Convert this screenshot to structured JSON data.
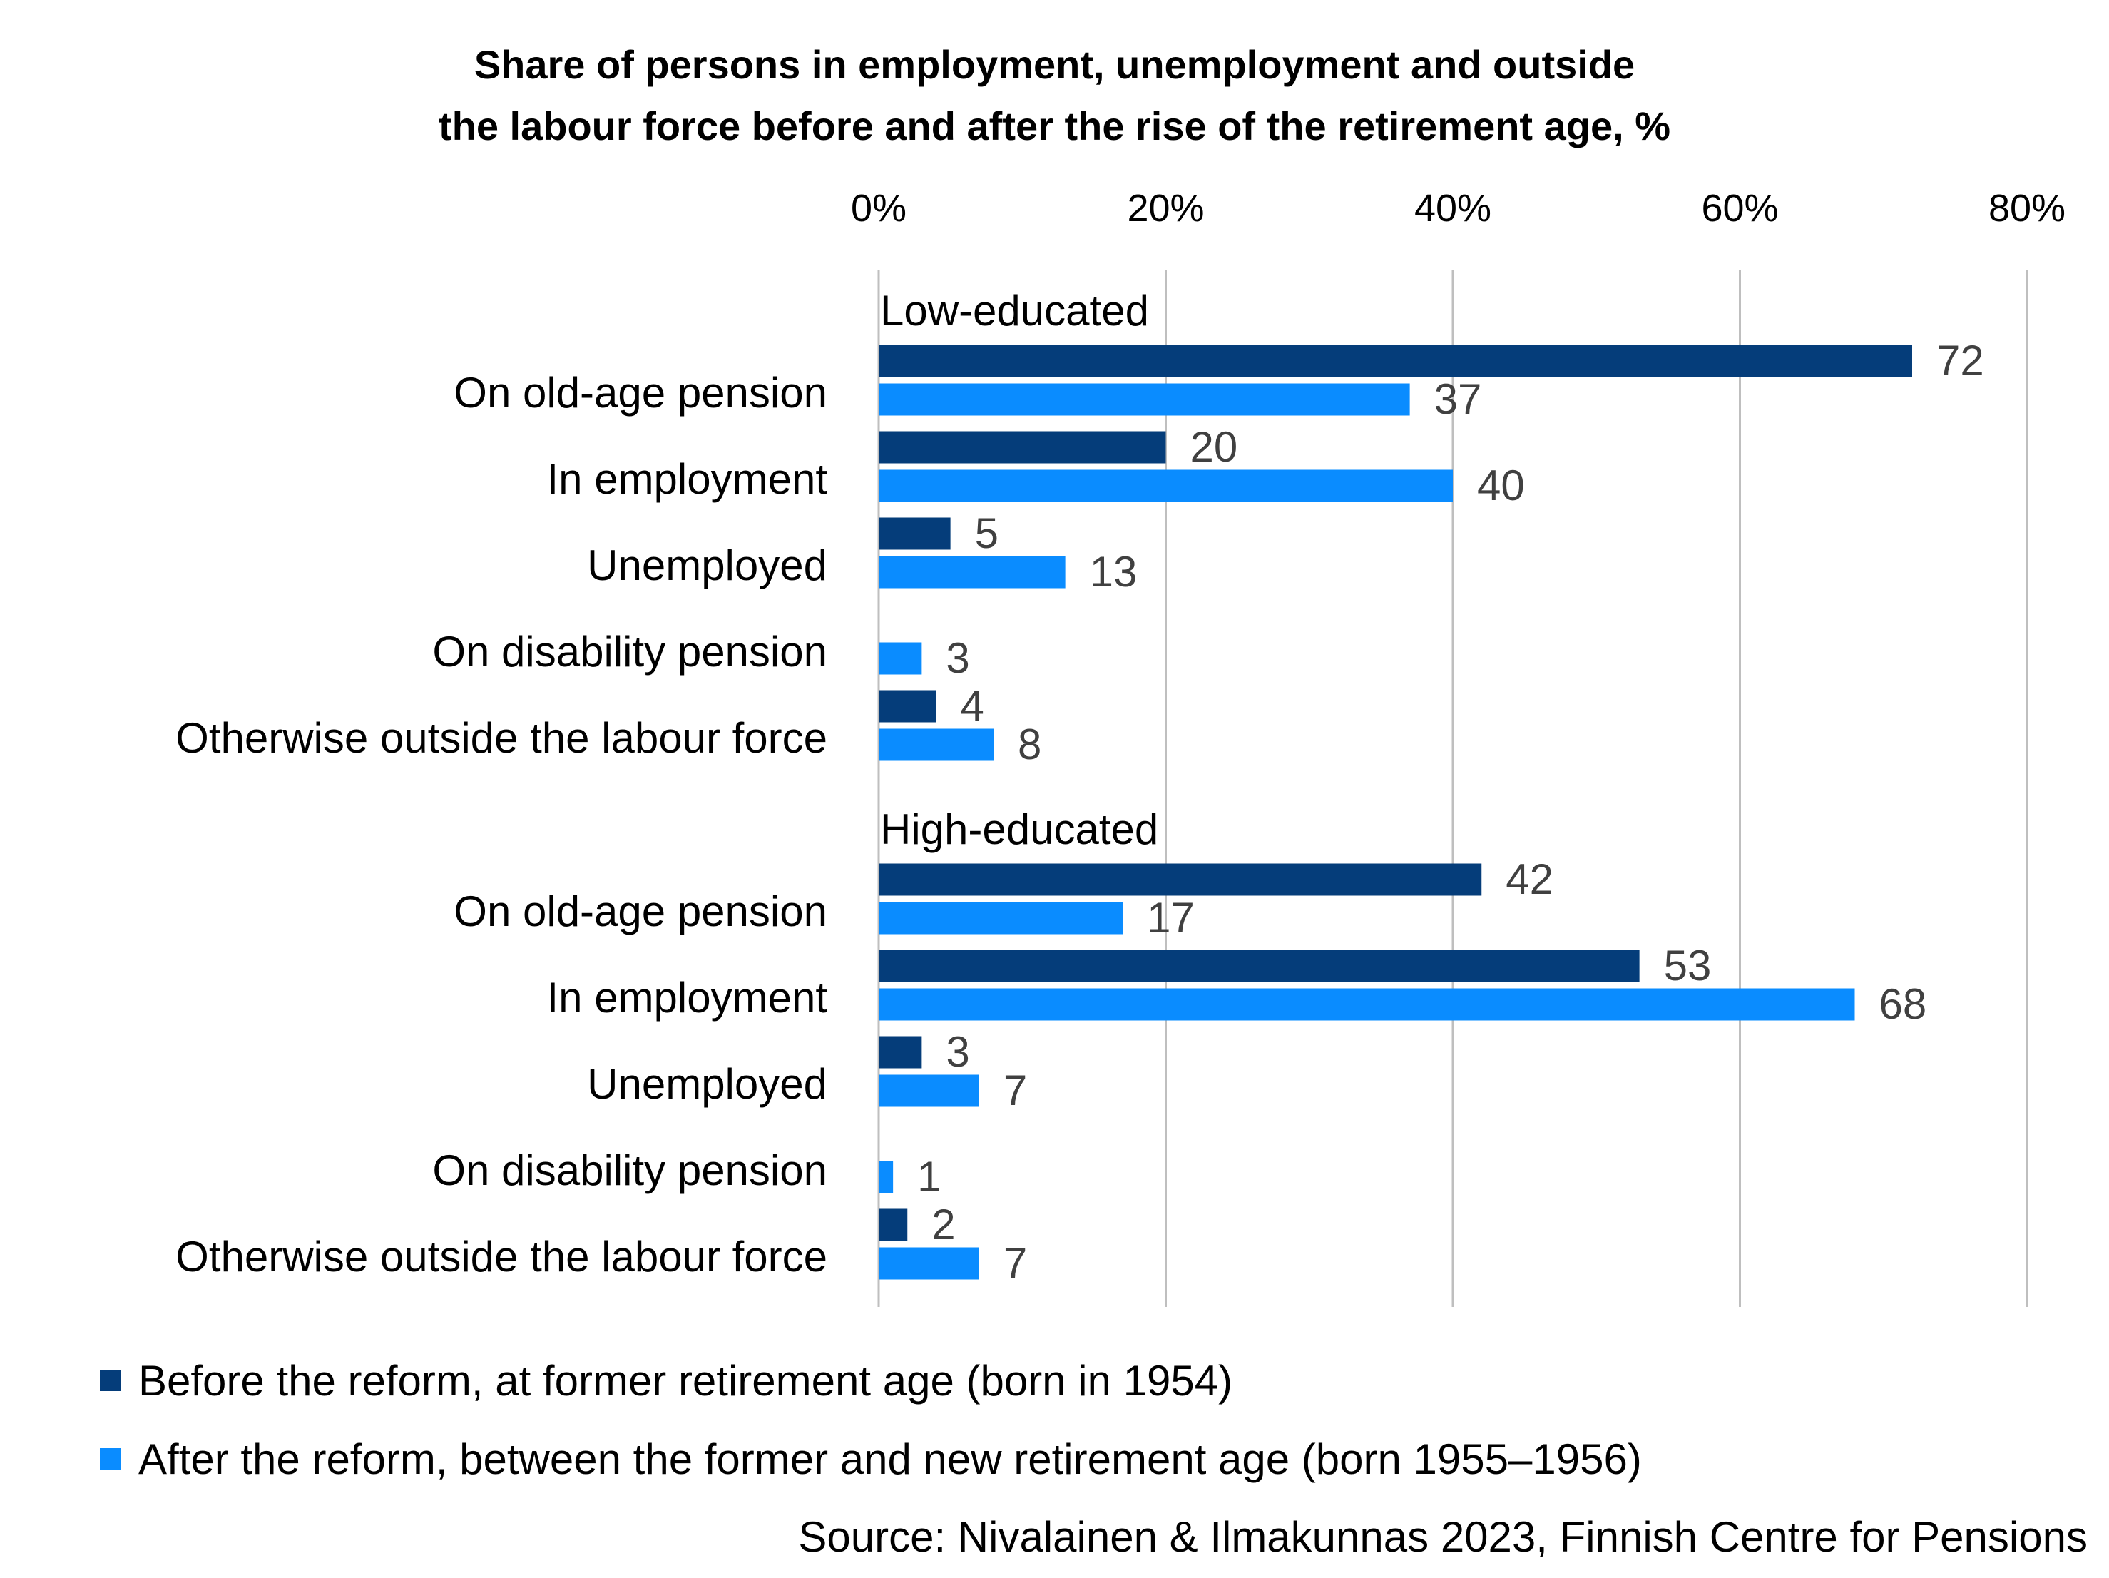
{
  "chart_data": {
    "type": "bar",
    "orientation": "horizontal",
    "title_lines": [
      "Share of persons in employment, unemployment and outside",
      "the labour force before and after the rise of the retirement age, %"
    ],
    "x_ticks": [
      "0%",
      "20%",
      "40%",
      "60%",
      "80%"
    ],
    "xlim": [
      0,
      80
    ],
    "grid": true,
    "groups": [
      {
        "name": "Low-educated",
        "categories": [
          "On old-age pension",
          "In employment",
          "Unemployed",
          "On disability pension",
          "Otherwise outside the labour force"
        ],
        "series": [
          {
            "values": [
              72,
              20,
              5,
              null,
              4
            ],
            "labels": [
              "72",
              "20",
              "5",
              "",
              "4"
            ]
          },
          {
            "values": [
              37,
              40,
              13,
              3,
              8
            ],
            "labels": [
              "37",
              "40",
              "13",
              "3",
              "8"
            ]
          }
        ]
      },
      {
        "name": "High-educated",
        "categories": [
          "On old-age pension",
          "In employment",
          "Unemployed",
          "On disability pension",
          "Otherwise outside the labour force"
        ],
        "series": [
          {
            "values": [
              42,
              53,
              3,
              null,
              2
            ],
            "labels": [
              "42",
              "53",
              "3",
              "",
              "2"
            ]
          },
          {
            "values": [
              17,
              68,
              7,
              1,
              7
            ],
            "labels": [
              "17",
              "68",
              "7",
              "1",
              "7"
            ]
          }
        ]
      }
    ],
    "legend": [
      "Before the reform, at former retirement age (born in 1954)",
      "After the reform, between the former and new retirement age (born 1955–1956)"
    ],
    "legend_position": "bottom",
    "source": "Source: Nivalainen & Ilmakunnas 2023, Finnish Centre for Pensions",
    "colors": {
      "before": "#053d7a",
      "after": "#0a8cff",
      "grid": "#bfbfbf",
      "label": "#404040"
    }
  }
}
